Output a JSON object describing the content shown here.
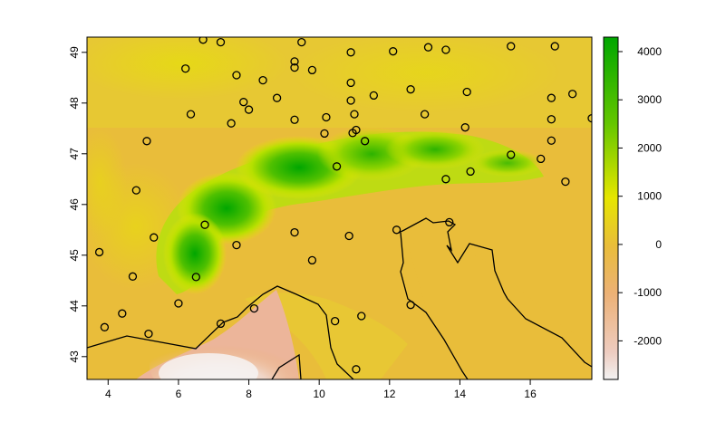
{
  "map": {
    "x_axis": {
      "range": [
        3.4,
        17.75
      ],
      "tick_labels": [
        "4",
        "6",
        "8",
        "10",
        "12",
        "14",
        "16"
      ],
      "ticks": [
        4,
        6,
        8,
        10,
        12,
        14,
        16
      ]
    },
    "y_axis": {
      "range": [
        42.55,
        49.3
      ],
      "tick_labels": [
        "43",
        "44",
        "45",
        "46",
        "47",
        "48",
        "49"
      ],
      "ticks": [
        43,
        44,
        45,
        46,
        47,
        48,
        49
      ]
    },
    "legend": {
      "range": [
        -2800,
        4300
      ],
      "tick_labels": [
        "4000",
        "3000",
        "2000",
        "1000",
        "0",
        "-1000",
        "-2000"
      ],
      "ticks": [
        4000,
        3000,
        2000,
        1000,
        0,
        -1000,
        -2000
      ],
      "colors": {
        "high": "#00a600",
        "mid_high": "#e6e600",
        "zero": "#e9bd3a",
        "low": "#ecb176",
        "lowest": "#f2f2f2"
      }
    },
    "points": [
      [
        6.7,
        49.25
      ],
      [
        7.2,
        49.2
      ],
      [
        9.5,
        49.2
      ],
      [
        13.1,
        49.1
      ],
      [
        13.6,
        49.05
      ],
      [
        15.45,
        49.12
      ],
      [
        16.7,
        49.12
      ],
      [
        10.9,
        49.0
      ],
      [
        12.1,
        49.02
      ],
      [
        9.3,
        48.82
      ],
      [
        9.3,
        48.7
      ],
      [
        9.8,
        48.65
      ],
      [
        6.2,
        48.68
      ],
      [
        7.65,
        48.55
      ],
      [
        8.4,
        48.45
      ],
      [
        10.9,
        48.4
      ],
      [
        12.6,
        48.27
      ],
      [
        14.2,
        48.22
      ],
      [
        16.6,
        48.1
      ],
      [
        17.2,
        48.18
      ],
      [
        8.8,
        48.1
      ],
      [
        7.85,
        48.02
      ],
      [
        10.9,
        48.05
      ],
      [
        11.55,
        48.15
      ],
      [
        8.0,
        47.87
      ],
      [
        6.35,
        47.78
      ],
      [
        13.0,
        47.78
      ],
      [
        11.0,
        47.78
      ],
      [
        10.2,
        47.72
      ],
      [
        16.6,
        47.68
      ],
      [
        17.75,
        47.7
      ],
      [
        7.5,
        47.6
      ],
      [
        9.3,
        47.67
      ],
      [
        14.15,
        47.52
      ],
      [
        11.05,
        47.47
      ],
      [
        10.95,
        47.41
      ],
      [
        10.15,
        47.4
      ],
      [
        5.1,
        47.25
      ],
      [
        11.3,
        47.25
      ],
      [
        16.6,
        47.26
      ],
      [
        15.45,
        46.98
      ],
      [
        16.3,
        46.9
      ],
      [
        10.5,
        46.75
      ],
      [
        14.3,
        46.65
      ],
      [
        17.0,
        46.45
      ],
      [
        13.6,
        46.5
      ],
      [
        4.8,
        46.28
      ],
      [
        6.75,
        45.6
      ],
      [
        13.7,
        45.65
      ],
      [
        12.2,
        45.5
      ],
      [
        9.3,
        45.45
      ],
      [
        10.85,
        45.38
      ],
      [
        5.3,
        45.35
      ],
      [
        7.65,
        45.2
      ],
      [
        3.75,
        45.06
      ],
      [
        9.8,
        44.9
      ],
      [
        4.7,
        44.58
      ],
      [
        6.5,
        44.57
      ],
      [
        6.0,
        44.05
      ],
      [
        12.6,
        44.02
      ],
      [
        8.15,
        43.95
      ],
      [
        4.4,
        43.85
      ],
      [
        11.2,
        43.8
      ],
      [
        10.45,
        43.7
      ],
      [
        7.2,
        43.65
      ],
      [
        3.9,
        43.58
      ],
      [
        5.15,
        43.45
      ],
      [
        11.05,
        42.75
      ]
    ]
  },
  "chart_data": {
    "type": "map",
    "title": "",
    "xlabel": "",
    "ylabel": "",
    "xlim": [
      3.4,
      17.75
    ],
    "ylim": [
      42.55,
      49.3
    ],
    "raster": "elevation",
    "legend_range": [
      -2800,
      4300
    ],
    "legend_ticks": [
      4000,
      3000,
      2000,
      1000,
      0,
      -1000,
      -2000
    ],
    "legend_placement": "right",
    "grid": false,
    "station_points": [
      [
        6.7,
        49.25
      ],
      [
        7.2,
        49.2
      ],
      [
        9.5,
        49.2
      ],
      [
        13.1,
        49.1
      ],
      [
        13.6,
        49.05
      ],
      [
        15.45,
        49.12
      ],
      [
        16.7,
        49.12
      ],
      [
        10.9,
        49.0
      ],
      [
        12.1,
        49.02
      ],
      [
        9.3,
        48.82
      ],
      [
        9.3,
        48.7
      ],
      [
        9.8,
        48.65
      ],
      [
        6.2,
        48.68
      ],
      [
        7.65,
        48.55
      ],
      [
        8.4,
        48.45
      ],
      [
        10.9,
        48.4
      ],
      [
        12.6,
        48.27
      ],
      [
        14.2,
        48.22
      ],
      [
        16.6,
        48.1
      ],
      [
        17.2,
        48.18
      ],
      [
        8.8,
        48.1
      ],
      [
        7.85,
        48.02
      ],
      [
        10.9,
        48.05
      ],
      [
        11.55,
        48.15
      ],
      [
        8.0,
        47.87
      ],
      [
        6.35,
        47.78
      ],
      [
        13.0,
        47.78
      ],
      [
        11.0,
        47.78
      ],
      [
        10.2,
        47.72
      ],
      [
        16.6,
        47.68
      ],
      [
        17.75,
        47.7
      ],
      [
        7.5,
        47.6
      ],
      [
        9.3,
        47.67
      ],
      [
        14.15,
        47.52
      ],
      [
        11.05,
        47.47
      ],
      [
        10.95,
        47.41
      ],
      [
        10.15,
        47.4
      ],
      [
        5.1,
        47.25
      ],
      [
        11.3,
        47.25
      ],
      [
        16.6,
        47.26
      ],
      [
        15.45,
        46.98
      ],
      [
        16.3,
        46.9
      ],
      [
        10.5,
        46.75
      ],
      [
        14.3,
        46.65
      ],
      [
        17.0,
        46.45
      ],
      [
        13.6,
        46.5
      ],
      [
        4.8,
        46.28
      ],
      [
        6.75,
        45.6
      ],
      [
        13.7,
        45.65
      ],
      [
        12.2,
        45.5
      ],
      [
        9.3,
        45.45
      ],
      [
        10.85,
        45.38
      ],
      [
        5.3,
        45.35
      ],
      [
        7.65,
        45.2
      ],
      [
        3.75,
        45.06
      ],
      [
        9.8,
        44.9
      ],
      [
        4.7,
        44.58
      ],
      [
        6.5,
        44.57
      ],
      [
        6.0,
        44.05
      ],
      [
        12.6,
        44.02
      ],
      [
        8.15,
        43.95
      ],
      [
        4.4,
        43.85
      ],
      [
        11.2,
        43.8
      ],
      [
        10.45,
        43.7
      ],
      [
        7.2,
        43.65
      ],
      [
        3.9,
        43.58
      ],
      [
        5.15,
        43.45
      ],
      [
        11.05,
        42.75
      ]
    ]
  }
}
